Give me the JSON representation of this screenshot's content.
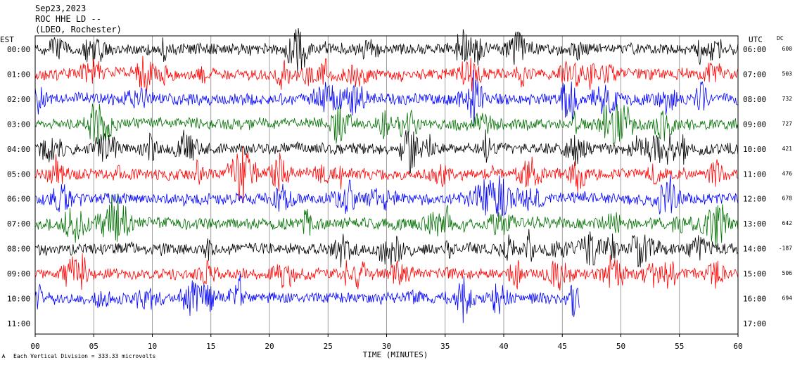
{
  "header": {
    "line1": "Sep23,2023",
    "line2": "ROC HHE LD --",
    "line3": "(LDEO, Rochester)"
  },
  "chart_data": {
    "type": "line",
    "title": "",
    "xlabel": "TIME (MINUTES)",
    "xlim": [
      0,
      60
    ],
    "x_ticks": [
      "00",
      "05",
      "10",
      "15",
      "20",
      "25",
      "30",
      "35",
      "40",
      "45",
      "50",
      "55",
      "60"
    ],
    "left_axis_label": "EST",
    "right_axis_label": "UTC",
    "dc_label": "DC",
    "grid": true,
    "footer_note": "Each Vertical Division =  333.33 microvolts",
    "series_colors": [
      "#000000",
      "#ff0000",
      "#0000ff",
      "#007000"
    ],
    "rows": [
      {
        "est": "00:00",
        "utc": "06:00",
        "dc": "600"
      },
      {
        "est": "01:00",
        "utc": "07:00",
        "dc": "503"
      },
      {
        "est": "02:00",
        "utc": "08:00",
        "dc": "732"
      },
      {
        "est": "03:00",
        "utc": "09:00",
        "dc": "727"
      },
      {
        "est": "04:00",
        "utc": "10:00",
        "dc": "421"
      },
      {
        "est": "05:00",
        "utc": "11:00",
        "dc": "476"
      },
      {
        "est": "06:00",
        "utc": "12:00",
        "dc": "678"
      },
      {
        "est": "07:00",
        "utc": "13:00",
        "dc": "642"
      },
      {
        "est": "08:00",
        "utc": "14:00",
        "dc": "-187"
      },
      {
        "est": "09:00",
        "utc": "15:00",
        "dc": "506"
      },
      {
        "est": "10:00",
        "utc": "16:00",
        "dc": "694"
      },
      {
        "est": "11:00",
        "utc": "17:00",
        "dc": ""
      }
    ]
  }
}
